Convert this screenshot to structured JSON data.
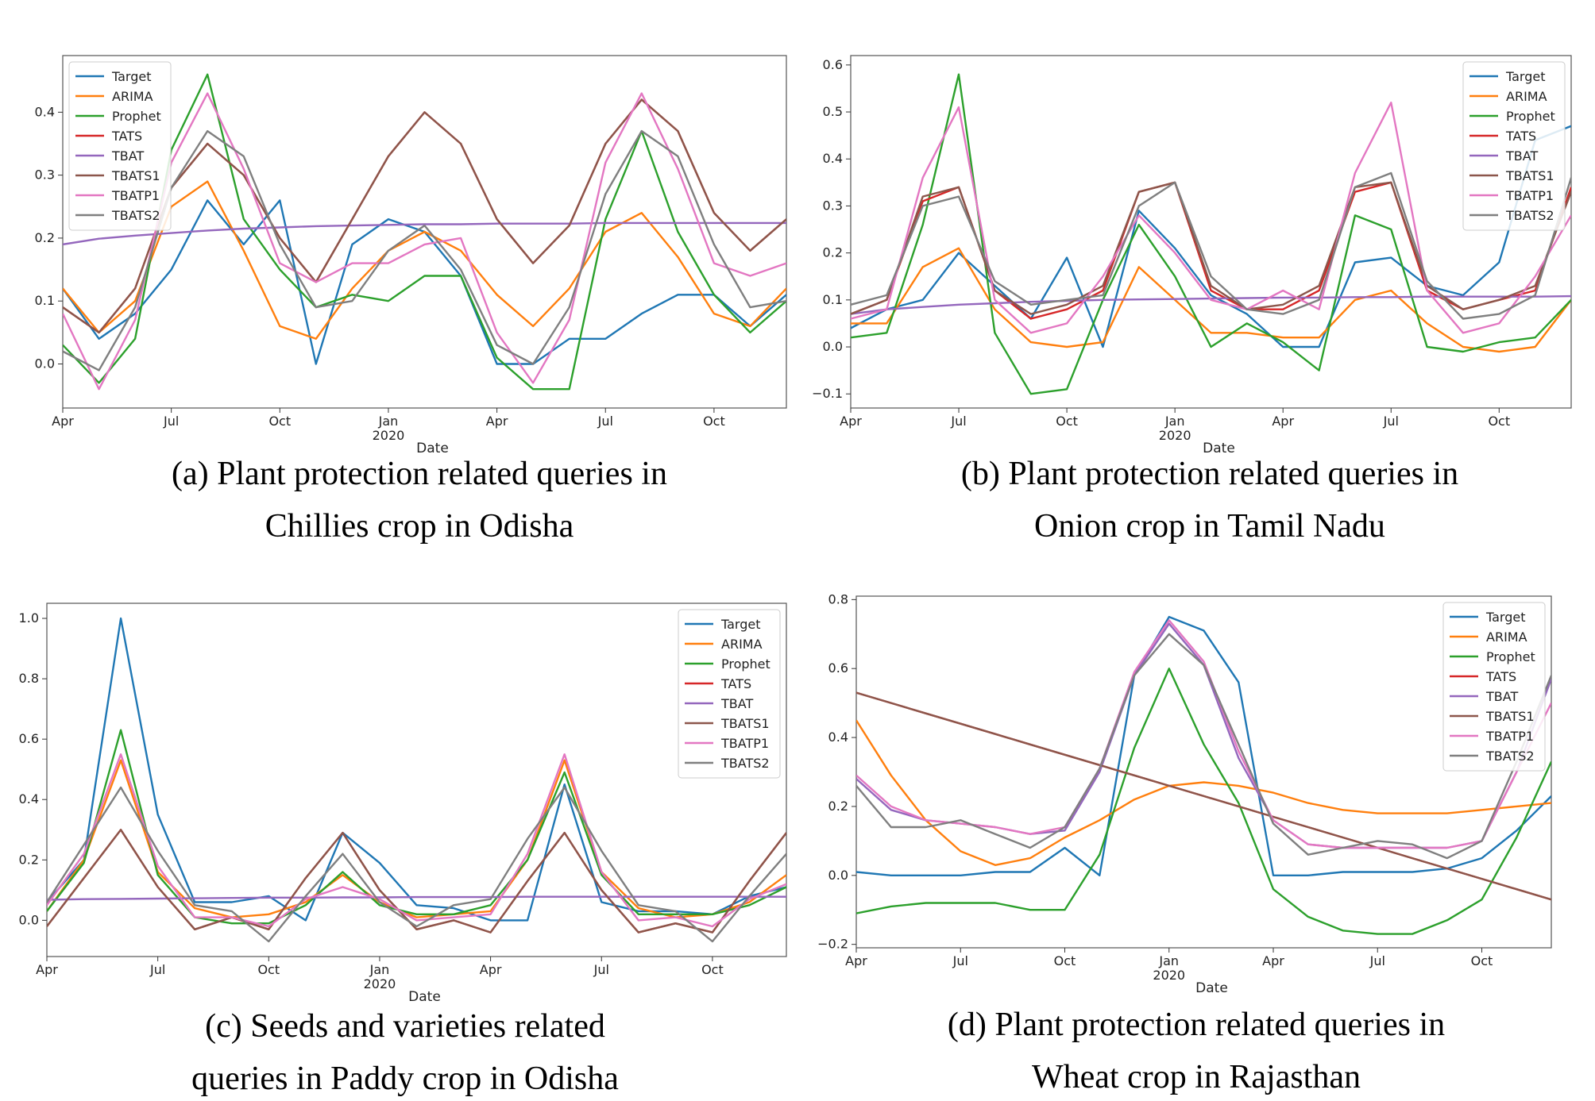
{
  "legend_order": [
    "Target",
    "ARIMA",
    "Prophet",
    "TATS",
    "TBAT",
    "TBATS1",
    "TBATP1",
    "TBATS2"
  ],
  "colors": {
    "Target": "#1f77b4",
    "ARIMA": "#ff7f0e",
    "Prophet": "#2ca02c",
    "TATS": "#d62728",
    "TBAT": "#9467bd",
    "TBATS1": "#8c564b",
    "TBATP1": "#e377c2",
    "TBATS2": "#7f7f7f"
  },
  "chart_data": [
    {
      "type": "line",
      "caption": [
        "(a) Plant protection related queries in",
        "Chillies crop in Odisha"
      ],
      "xlabel": "Date",
      "ylabel": "",
      "xlim": [
        0,
        20
      ],
      "ylim": [
        -0.07,
        0.49
      ],
      "yticks": [
        0.0,
        0.1,
        0.2,
        0.3,
        0.4
      ],
      "ytick_labels": [
        "0.0",
        "0.1",
        "0.2",
        "0.3",
        "0.4"
      ],
      "xticks": [
        0,
        3,
        6,
        9,
        12,
        15,
        18
      ],
      "xtick_labels": [
        "Apr",
        "Jul",
        "Oct",
        "Jan",
        "Apr",
        "Jul",
        "Oct"
      ],
      "year_label": {
        "x": 9,
        "text": "2020"
      },
      "legend_pos": "top-left",
      "series": [
        {
          "name": "Target",
          "values": [
            0.12,
            0.04,
            0.08,
            0.15,
            0.26,
            0.19,
            0.26,
            0.0,
            0.19,
            0.23,
            0.21,
            0.14,
            0.0,
            0.0,
            0.04,
            0.04,
            0.08,
            0.11,
            0.11,
            0.06,
            0.11
          ]
        },
        {
          "name": "ARIMA",
          "values": [
            0.12,
            0.05,
            0.1,
            0.25,
            0.29,
            0.18,
            0.06,
            0.04,
            0.12,
            0.18,
            0.21,
            0.18,
            0.11,
            0.06,
            0.12,
            0.21,
            0.24,
            0.17,
            0.08,
            0.06,
            0.12
          ]
        },
        {
          "name": "Prophet",
          "values": [
            0.03,
            -0.03,
            0.04,
            0.34,
            0.46,
            0.23,
            0.15,
            0.09,
            0.11,
            0.1,
            0.14,
            0.14,
            0.01,
            -0.04,
            -0.04,
            0.23,
            0.37,
            0.21,
            0.11,
            0.05,
            0.1
          ]
        },
        {
          "name": "TATS",
          "values": [
            0.09,
            0.05,
            0.12,
            0.28,
            0.35,
            0.3,
            0.2,
            0.13,
            0.23,
            0.33,
            0.4,
            0.35,
            0.23,
            0.16,
            0.22,
            0.35,
            0.42,
            0.37,
            0.24,
            0.18,
            0.23
          ]
        },
        {
          "name": "TBAT",
          "values": [
            0.19,
            0.199,
            0.204,
            0.208,
            0.212,
            0.215,
            0.217,
            0.219,
            0.22,
            0.221,
            0.222,
            0.222,
            0.223,
            0.223,
            0.223,
            0.224,
            0.224,
            0.224,
            0.224,
            0.224,
            0.224
          ]
        },
        {
          "name": "TBATS1",
          "values": [
            0.09,
            0.05,
            0.12,
            0.28,
            0.35,
            0.3,
            0.2,
            0.13,
            0.23,
            0.33,
            0.4,
            0.35,
            0.23,
            0.16,
            0.22,
            0.35,
            0.42,
            0.37,
            0.24,
            0.18,
            0.23
          ]
        },
        {
          "name": "TBATP1",
          "values": [
            0.08,
            -0.04,
            0.07,
            0.32,
            0.43,
            0.31,
            0.16,
            0.13,
            0.16,
            0.16,
            0.19,
            0.2,
            0.05,
            -0.03,
            0.07,
            0.32,
            0.43,
            0.31,
            0.16,
            0.14,
            0.16
          ]
        },
        {
          "name": "TBATS2",
          "values": [
            0.02,
            -0.01,
            0.09,
            0.28,
            0.37,
            0.33,
            0.19,
            0.09,
            0.1,
            0.18,
            0.22,
            0.15,
            0.03,
            0.0,
            0.09,
            0.27,
            0.37,
            0.33,
            0.19,
            0.09,
            0.1
          ]
        }
      ]
    },
    {
      "type": "line",
      "caption": [
        "(b) Plant protection related queries in",
        "Onion crop in Tamil Nadu"
      ],
      "xlabel": "Date",
      "ylabel": "",
      "xlim": [
        0,
        20
      ],
      "ylim": [
        -0.13,
        0.62
      ],
      "yticks": [
        -0.1,
        0.0,
        0.1,
        0.2,
        0.3,
        0.4,
        0.5,
        0.6
      ],
      "ytick_labels": [
        "−0.1",
        "0.0",
        "0.1",
        "0.2",
        "0.3",
        "0.4",
        "0.5",
        "0.6"
      ],
      "xticks": [
        0,
        3,
        6,
        9,
        12,
        15,
        18
      ],
      "xtick_labels": [
        "Apr",
        "Jul",
        "Oct",
        "Jan",
        "Apr",
        "Jul",
        "Oct"
      ],
      "year_label": {
        "x": 9,
        "text": "2020"
      },
      "legend_pos": "top-right",
      "series": [
        {
          "name": "Target",
          "values": [
            0.04,
            0.08,
            0.1,
            0.2,
            0.13,
            0.06,
            0.19,
            0.0,
            0.29,
            0.21,
            0.11,
            0.07,
            0.0,
            0.0,
            0.18,
            0.19,
            0.13,
            0.11,
            0.18,
            0.44,
            0.47
          ]
        },
        {
          "name": "ARIMA",
          "values": [
            0.05,
            0.05,
            0.17,
            0.21,
            0.08,
            0.01,
            0.0,
            0.01,
            0.17,
            0.1,
            0.03,
            0.03,
            0.02,
            0.02,
            0.1,
            0.12,
            0.05,
            0.0,
            -0.01,
            0.0,
            0.1
          ]
        },
        {
          "name": "Prophet",
          "values": [
            0.02,
            0.03,
            0.26,
            0.58,
            0.03,
            -0.1,
            -0.09,
            0.1,
            0.26,
            0.15,
            0.0,
            0.05,
            0.01,
            -0.05,
            0.28,
            0.25,
            0.0,
            -0.01,
            0.01,
            0.02,
            0.1
          ]
        },
        {
          "name": "TATS",
          "values": [
            0.07,
            0.1,
            0.31,
            0.34,
            0.12,
            0.06,
            0.08,
            0.12,
            0.33,
            0.35,
            0.12,
            0.08,
            0.08,
            0.12,
            0.33,
            0.35,
            0.12,
            0.08,
            0.1,
            0.12,
            0.34
          ]
        },
        {
          "name": "TBAT",
          "values": [
            0.07,
            0.08,
            0.085,
            0.09,
            0.093,
            0.096,
            0.098,
            0.1,
            0.101,
            0.102,
            0.103,
            0.104,
            0.105,
            0.105,
            0.106,
            0.106,
            0.107,
            0.107,
            0.107,
            0.107,
            0.108
          ]
        },
        {
          "name": "TBATS1",
          "values": [
            0.07,
            0.1,
            0.32,
            0.34,
            0.12,
            0.07,
            0.09,
            0.13,
            0.33,
            0.35,
            0.13,
            0.08,
            0.09,
            0.13,
            0.34,
            0.35,
            0.13,
            0.08,
            0.1,
            0.13,
            0.33
          ]
        },
        {
          "name": "TBATP1",
          "values": [
            0.06,
            0.08,
            0.36,
            0.51,
            0.1,
            0.03,
            0.05,
            0.15,
            0.28,
            0.2,
            0.1,
            0.08,
            0.12,
            0.08,
            0.37,
            0.52,
            0.12,
            0.03,
            0.05,
            0.15,
            0.28
          ]
        },
        {
          "name": "TBATS2",
          "values": [
            0.09,
            0.11,
            0.3,
            0.32,
            0.14,
            0.09,
            0.1,
            0.11,
            0.3,
            0.35,
            0.15,
            0.08,
            0.07,
            0.1,
            0.34,
            0.37,
            0.14,
            0.06,
            0.07,
            0.11,
            0.36
          ]
        }
      ]
    },
    {
      "type": "line",
      "caption": [
        "(c) Seeds and varieties related",
        "queries in Paddy crop in Odisha"
      ],
      "xlabel": "Date",
      "ylabel": "",
      "xlim": [
        0,
        20
      ],
      "ylim": [
        -0.12,
        1.05
      ],
      "yticks": [
        0.0,
        0.2,
        0.4,
        0.6,
        0.8,
        1.0
      ],
      "ytick_labels": [
        "0.0",
        "0.2",
        "0.4",
        "0.6",
        "0.8",
        "1.0"
      ],
      "xticks": [
        0,
        3,
        6,
        9,
        12,
        15,
        18
      ],
      "xtick_labels": [
        "Apr",
        "Jul",
        "Oct",
        "Jan",
        "Apr",
        "Jul",
        "Oct"
      ],
      "year_label": {
        "x": 9,
        "text": "2020"
      },
      "legend_pos": "top-right",
      "series": [
        {
          "name": "Target",
          "values": [
            0.06,
            0.2,
            1.0,
            0.35,
            0.06,
            0.06,
            0.08,
            0.0,
            0.29,
            0.19,
            0.05,
            0.04,
            0.0,
            0.0,
            0.45,
            0.06,
            0.03,
            0.03,
            0.02,
            0.08,
            0.11
          ]
        },
        {
          "name": "ARIMA",
          "values": [
            0.03,
            0.2,
            0.53,
            0.16,
            0.04,
            0.01,
            0.02,
            0.06,
            0.15,
            0.06,
            0.01,
            0.02,
            0.03,
            0.2,
            0.53,
            0.16,
            0.04,
            0.01,
            0.02,
            0.06,
            0.15
          ]
        },
        {
          "name": "Prophet",
          "values": [
            0.03,
            0.19,
            0.63,
            0.15,
            0.01,
            -0.01,
            -0.01,
            0.05,
            0.16,
            0.05,
            0.02,
            0.02,
            0.05,
            0.2,
            0.49,
            0.15,
            0.02,
            0.02,
            0.02,
            0.05,
            0.11
          ]
        },
        {
          "name": "TATS",
          "values": [
            -0.02,
            0.14,
            0.3,
            0.11,
            -0.03,
            0.01,
            -0.03,
            0.14,
            0.29,
            0.1,
            -0.03,
            0.0,
            -0.04,
            0.13,
            0.29,
            0.1,
            -0.04,
            -0.01,
            -0.04,
            0.13,
            0.29
          ]
        },
        {
          "name": "TBAT",
          "values": [
            0.068,
            0.07,
            0.071,
            0.072,
            0.073,
            0.074,
            0.075,
            0.075,
            0.076,
            0.076,
            0.077,
            0.077,
            0.077,
            0.078,
            0.078,
            0.078,
            0.078,
            0.078,
            0.078,
            0.078,
            0.078
          ]
        },
        {
          "name": "TBATS1",
          "values": [
            -0.02,
            0.14,
            0.3,
            0.11,
            -0.03,
            0.01,
            -0.03,
            0.14,
            0.29,
            0.1,
            -0.03,
            0.0,
            -0.04,
            0.13,
            0.29,
            0.1,
            -0.04,
            -0.01,
            -0.04,
            0.13,
            0.29
          ]
        },
        {
          "name": "TBATP1",
          "values": [
            0.05,
            0.22,
            0.55,
            0.18,
            0.01,
            0.01,
            -0.02,
            0.07,
            0.11,
            0.07,
            0.0,
            0.01,
            0.02,
            0.22,
            0.55,
            0.16,
            0.0,
            0.01,
            -0.02,
            0.07,
            0.12
          ]
        },
        {
          "name": "TBATS2",
          "values": [
            0.06,
            0.25,
            0.44,
            0.23,
            0.05,
            0.03,
            -0.07,
            0.08,
            0.22,
            0.06,
            -0.02,
            0.05,
            0.07,
            0.27,
            0.44,
            0.23,
            0.05,
            0.03,
            -0.07,
            0.08,
            0.22
          ]
        }
      ]
    },
    {
      "type": "line",
      "caption": [
        "(d) Plant protection related queries in",
        "Wheat crop in Rajasthan"
      ],
      "xlabel": "Date",
      "ylabel": "",
      "xlim": [
        0,
        20
      ],
      "ylim": [
        -0.21,
        0.81
      ],
      "yticks": [
        -0.2,
        0.0,
        0.2,
        0.4,
        0.6,
        0.8
      ],
      "ytick_labels": [
        "−0.2",
        "0.0",
        "0.2",
        "0.4",
        "0.6",
        "0.8"
      ],
      "xticks": [
        0,
        3,
        6,
        9,
        12,
        15,
        18
      ],
      "xtick_labels": [
        "Apr",
        "Jul",
        "Oct",
        "Jan",
        "Apr",
        "Jul",
        "Oct"
      ],
      "year_label": {
        "x": 9,
        "text": "2020"
      },
      "legend_pos": "top-right",
      "series": [
        {
          "name": "Target",
          "values": [
            0.01,
            0.0,
            0.0,
            0.0,
            0.01,
            0.01,
            0.08,
            0.0,
            0.58,
            0.75,
            0.71,
            0.56,
            0.0,
            0.0,
            0.01,
            0.01,
            0.01,
            0.02,
            0.05,
            0.13,
            0.23
          ]
        },
        {
          "name": "ARIMA",
          "values": [
            0.45,
            0.29,
            0.16,
            0.07,
            0.03,
            0.05,
            0.11,
            0.16,
            0.22,
            0.26,
            0.27,
            0.26,
            0.24,
            0.21,
            0.19,
            0.18,
            0.18,
            0.18,
            0.19,
            0.2,
            0.21
          ]
        },
        {
          "name": "Prophet",
          "values": [
            -0.11,
            -0.09,
            -0.08,
            -0.08,
            -0.08,
            -0.1,
            -0.1,
            0.06,
            0.37,
            0.6,
            0.38,
            0.21,
            -0.04,
            -0.12,
            -0.16,
            -0.17,
            -0.17,
            -0.13,
            -0.07,
            0.11,
            0.33
          ]
        },
        {
          "name": "TATS",
          "values": [
            0.53,
            0.5,
            0.47,
            0.44,
            0.41,
            0.38,
            0.35,
            0.32,
            0.29,
            0.26,
            0.23,
            0.2,
            0.17,
            0.14,
            0.11,
            0.08,
            0.05,
            0.02,
            -0.01,
            -0.04,
            -0.07
          ]
        },
        {
          "name": "TBAT",
          "values": [
            0.28,
            0.19,
            0.16,
            0.15,
            0.14,
            0.12,
            0.13,
            0.3,
            0.58,
            0.73,
            0.61,
            0.34,
            0.16,
            0.09,
            0.08,
            0.08,
            0.08,
            0.08,
            0.1,
            0.3,
            0.57
          ]
        },
        {
          "name": "TBATS1",
          "values": [
            0.53,
            0.5,
            0.47,
            0.44,
            0.41,
            0.38,
            0.35,
            0.32,
            0.29,
            0.26,
            0.23,
            0.2,
            0.17,
            0.14,
            0.11,
            0.08,
            0.05,
            0.02,
            -0.01,
            -0.04,
            -0.07
          ]
        },
        {
          "name": "TBATP1",
          "values": [
            0.29,
            0.2,
            0.16,
            0.15,
            0.14,
            0.12,
            0.14,
            0.31,
            0.59,
            0.74,
            0.62,
            0.36,
            0.16,
            0.09,
            0.08,
            0.08,
            0.08,
            0.08,
            0.1,
            0.3,
            0.5
          ]
        },
        {
          "name": "TBATS2",
          "values": [
            0.26,
            0.14,
            0.14,
            0.16,
            0.12,
            0.08,
            0.14,
            0.31,
            0.58,
            0.7,
            0.61,
            0.38,
            0.15,
            0.06,
            0.08,
            0.1,
            0.09,
            0.05,
            0.1,
            0.33,
            0.58
          ]
        }
      ]
    }
  ]
}
